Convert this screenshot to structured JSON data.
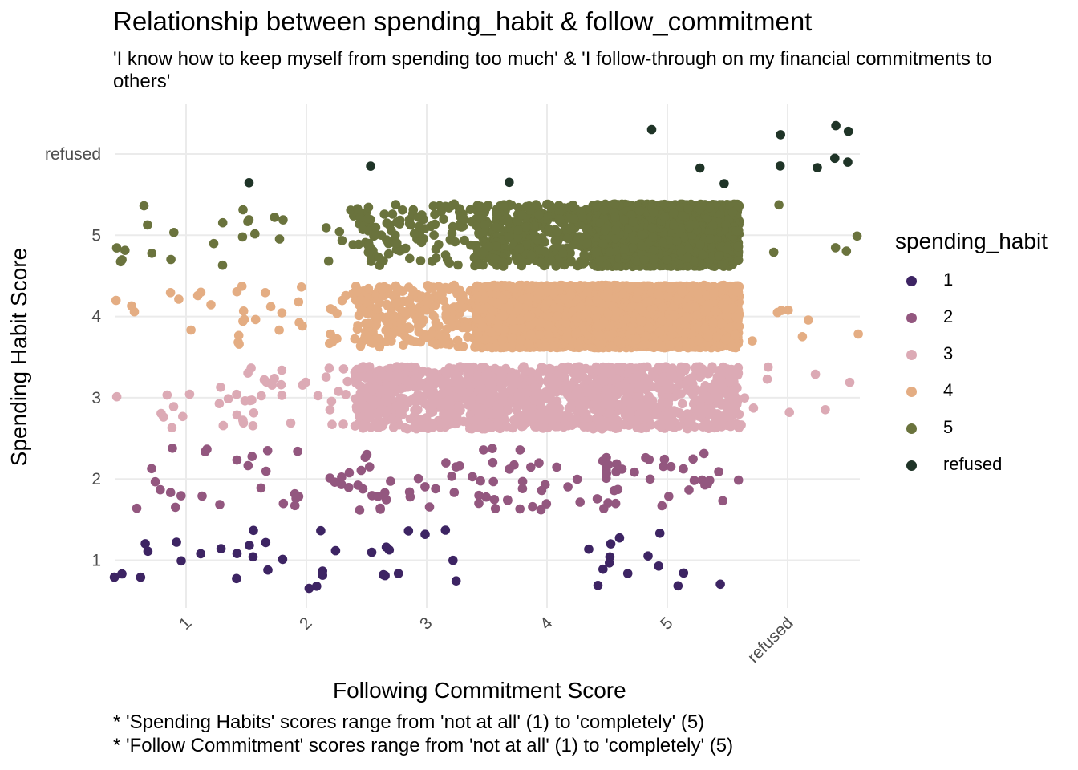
{
  "chart_data": {
    "type": "scatter",
    "jitter": true,
    "title": "Relationship between spending_habit & follow_commitment",
    "subtitle": "'I know how to keep myself from spending too much' & 'I follow-through on my financial commitments to others'",
    "xlabel": "Following Commitment Score",
    "ylabel": "Spending Habit Score",
    "caption_lines": [
      "* 'Spending Habits' scores range from 'not at all' (1) to 'completely' (5)",
      "* 'Follow Commitment' scores range from 'not at all' (1) to 'completely' (5)"
    ],
    "x_categories": [
      "1",
      "2",
      "3",
      "4",
      "5",
      "refused"
    ],
    "y_categories": [
      "1",
      "2",
      "3",
      "4",
      "5",
      "refused"
    ],
    "legend_title": "spending_habit",
    "legend_position": "right",
    "grid": true,
    "series": [
      {
        "name": "1",
        "color": "#3d2463"
      },
      {
        "name": "2",
        "color": "#93577f"
      },
      {
        "name": "3",
        "color": "#dcaab5"
      },
      {
        "name": "4",
        "color": "#e4ad83"
      },
      {
        "name": "5",
        "color": "#6a733d"
      },
      {
        "name": "refused",
        "color": "#1f3427"
      }
    ],
    "cell_counts": [
      [
        12,
        12,
        10,
        2,
        12,
        0
      ],
      [
        12,
        20,
        30,
        30,
        30,
        0
      ],
      [
        15,
        40,
        500,
        500,
        500,
        10
      ],
      [
        12,
        35,
        300,
        2500,
        2500,
        7
      ],
      [
        15,
        16,
        120,
        450,
        2500,
        5
      ],
      [
        0,
        1,
        1,
        1,
        2,
        8
      ]
    ]
  }
}
